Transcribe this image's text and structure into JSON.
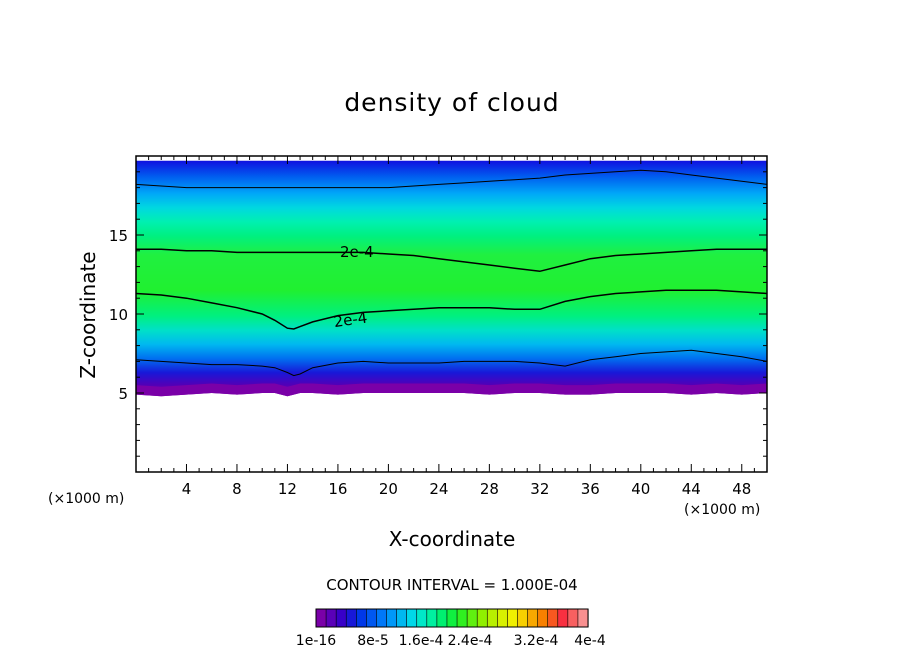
{
  "chart_data": {
    "type": "heatmap",
    "title": "density of cloud",
    "xlabel": "X-coordinate",
    "ylabel": "Z-coordinate",
    "x_unit": "(×1000 m)",
    "xlim": [
      0,
      50
    ],
    "ylim": [
      0,
      20
    ],
    "x_ticks": [
      4,
      8,
      12,
      16,
      20,
      24,
      28,
      32,
      36,
      40,
      44,
      48
    ],
    "y_ticks": [
      5,
      10,
      15
    ],
    "contour_interval_text": "CONTOUR INTERVAL = 1.000E-04",
    "contour_labels": [
      {
        "text": "2e-4",
        "x": 17.5,
        "z": 13.9
      },
      {
        "text": "2e-4",
        "x": 17.0,
        "z": 9.6
      }
    ],
    "profile": {
      "x": [
        0,
        2,
        4,
        6,
        8,
        10,
        11,
        12,
        12.5,
        13,
        14,
        16,
        18,
        20,
        22,
        24,
        26,
        28,
        30,
        32,
        34,
        36,
        38,
        40,
        42,
        44,
        46,
        48,
        50
      ],
      "top": [
        19.7,
        19.7,
        19.7,
        19.7,
        19.7,
        19.7,
        19.7,
        19.7,
        19.7,
        19.7,
        19.7,
        19.7,
        19.7,
        19.7,
        19.7,
        19.7,
        19.7,
        19.7,
        19.7,
        19.7,
        19.7,
        19.7,
        19.7,
        19.7,
        19.7,
        19.7,
        19.7,
        19.7,
        19.7
      ],
      "line_upper": [
        18.2,
        18.1,
        18.0,
        18.0,
        18.0,
        18.0,
        18.0,
        18.0,
        18.0,
        18.0,
        18.0,
        18.0,
        18.0,
        18.0,
        18.1,
        18.2,
        18.3,
        18.4,
        18.5,
        18.6,
        18.8,
        18.9,
        19.0,
        19.1,
        19.0,
        18.8,
        18.6,
        18.4,
        18.2
      ],
      "contour_high": [
        14.1,
        14.1,
        14.0,
        14.0,
        13.9,
        13.9,
        13.9,
        13.9,
        13.9,
        13.9,
        13.9,
        13.9,
        13.9,
        13.8,
        13.7,
        13.5,
        13.3,
        13.1,
        12.9,
        12.7,
        13.1,
        13.5,
        13.7,
        13.8,
        13.9,
        14.0,
        14.1,
        14.1,
        14.1
      ],
      "contour_low": [
        11.3,
        11.2,
        11.0,
        10.7,
        10.4,
        10.0,
        9.6,
        9.1,
        9.05,
        9.2,
        9.5,
        9.9,
        10.1,
        10.2,
        10.3,
        10.4,
        10.4,
        10.4,
        10.3,
        10.3,
        10.8,
        11.1,
        11.3,
        11.4,
        11.5,
        11.5,
        11.5,
        11.4,
        11.3
      ],
      "line_lower": [
        7.1,
        7.0,
        6.9,
        6.8,
        6.8,
        6.7,
        6.6,
        6.3,
        6.1,
        6.2,
        6.6,
        6.9,
        7.0,
        6.9,
        6.9,
        6.9,
        7.0,
        7.0,
        7.0,
        6.9,
        6.7,
        7.1,
        7.3,
        7.5,
        7.6,
        7.7,
        7.5,
        7.3,
        7.0
      ],
      "bottom": [
        4.9,
        4.8,
        4.9,
        5.0,
        4.9,
        5.0,
        5.0,
        4.8,
        4.9,
        5.0,
        5.0,
        4.9,
        5.0,
        5.0,
        5.0,
        5.0,
        5.0,
        4.9,
        5.0,
        5.0,
        4.9,
        4.9,
        5.0,
        5.0,
        5.0,
        4.9,
        5.0,
        4.9,
        5.0
      ]
    },
    "colorbar": {
      "colors": [
        "#7a00a8",
        "#5a00b8",
        "#3800c8",
        "#1818d8",
        "#0038e8",
        "#0058f0",
        "#0078f8",
        "#0098f8",
        "#00b8f0",
        "#00d8e8",
        "#00e8c8",
        "#00f0a0",
        "#00f070",
        "#10f040",
        "#30f020",
        "#60f010",
        "#90f000",
        "#b8f000",
        "#d8f000",
        "#f0f000",
        "#f8d000",
        "#f8a800",
        "#f88000",
        "#f85820",
        "#f83040",
        "#f86060",
        "#f89090"
      ],
      "labels": [
        "1e-16",
        "8e-5",
        "1.6e-4",
        "2.4e-4",
        "3.2e-4",
        "4e-4"
      ]
    }
  }
}
